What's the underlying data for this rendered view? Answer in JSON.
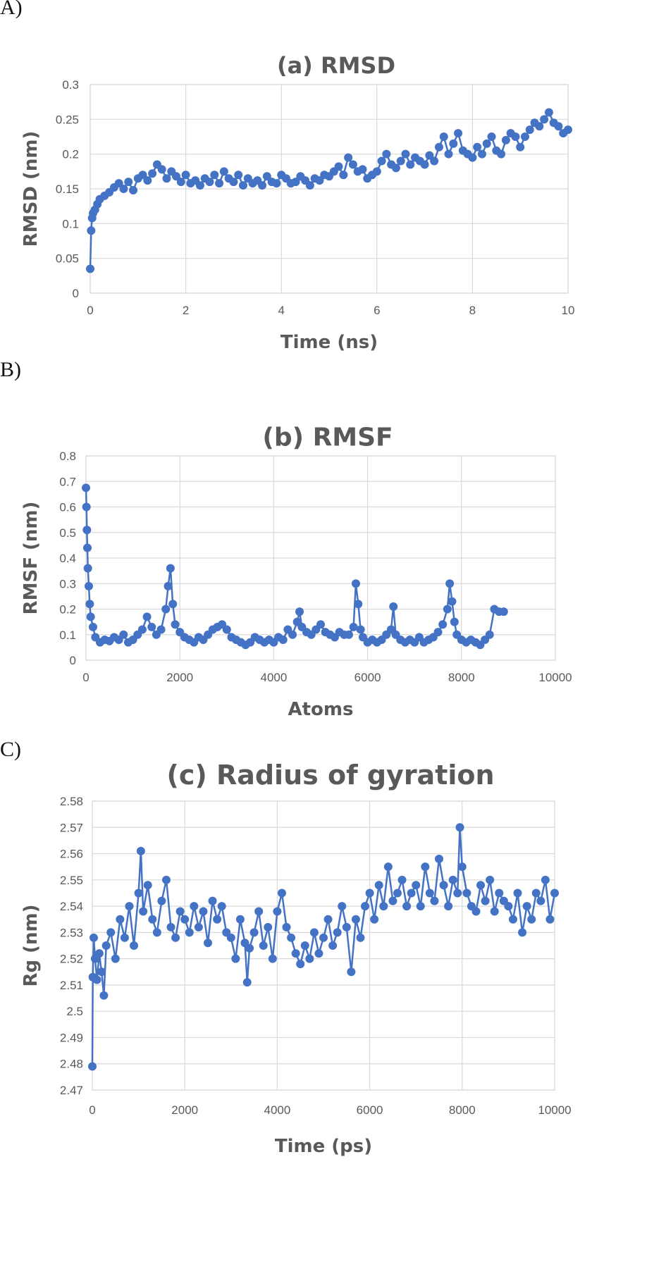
{
  "panels": [
    {
      "label": "A)"
    },
    {
      "label": "B)"
    },
    {
      "label": "C)"
    }
  ],
  "colors": {
    "series": "#4472c4",
    "grid": "#d9d9d9",
    "text": "#595959"
  },
  "chart_data": [
    {
      "type": "line",
      "title": "(a) RMSD",
      "xlabel": "Time (ns)",
      "ylabel": "RMSD (nm)",
      "xlim": [
        0,
        10
      ],
      "ylim": [
        0,
        0.3
      ],
      "xticks": [
        "0",
        "2",
        "4",
        "6",
        "8",
        "10"
      ],
      "yticks": [
        "0",
        "0.05",
        "0.1",
        "0.15",
        "0.2",
        "0.25",
        "0.3"
      ],
      "grid": true,
      "series": [
        {
          "x": [
            0,
            0.02,
            0.04,
            0.06,
            0.1,
            0.15,
            0.2,
            0.3,
            0.4,
            0.5,
            0.6,
            0.7,
            0.8,
            0.9,
            1.0,
            1.1,
            1.2,
            1.3,
            1.4,
            1.5,
            1.6,
            1.7,
            1.8,
            1.9,
            2.0,
            2.1,
            2.2,
            2.3,
            2.4,
            2.5,
            2.6,
            2.7,
            2.8,
            2.9,
            3.0,
            3.1,
            3.2,
            3.3,
            3.4,
            3.5,
            3.6,
            3.7,
            3.8,
            3.9,
            4.0,
            4.1,
            4.2,
            4.3,
            4.4,
            4.5,
            4.6,
            4.7,
            4.8,
            4.9,
            5.0,
            5.1,
            5.2,
            5.3,
            5.4,
            5.5,
            5.6,
            5.7,
            5.8,
            5.9,
            6.0,
            6.1,
            6.2,
            6.3,
            6.4,
            6.5,
            6.6,
            6.7,
            6.8,
            6.9,
            7.0,
            7.1,
            7.2,
            7.3,
            7.4,
            7.5,
            7.6,
            7.7,
            7.8,
            7.9,
            8.0,
            8.1,
            8.2,
            8.3,
            8.4,
            8.5,
            8.6,
            8.7,
            8.8,
            8.9,
            9.0,
            9.1,
            9.2,
            9.3,
            9.4,
            9.5,
            9.6,
            9.7,
            9.8,
            9.9,
            10.0
          ],
          "y": [
            0.035,
            0.09,
            0.108,
            0.115,
            0.12,
            0.128,
            0.135,
            0.14,
            0.145,
            0.152,
            0.158,
            0.15,
            0.16,
            0.148,
            0.165,
            0.17,
            0.162,
            0.172,
            0.185,
            0.178,
            0.165,
            0.175,
            0.168,
            0.16,
            0.17,
            0.158,
            0.162,
            0.155,
            0.165,
            0.16,
            0.17,
            0.158,
            0.175,
            0.165,
            0.16,
            0.17,
            0.155,
            0.165,
            0.158,
            0.162,
            0.155,
            0.168,
            0.16,
            0.158,
            0.17,
            0.165,
            0.158,
            0.16,
            0.168,
            0.162,
            0.155,
            0.165,
            0.162,
            0.17,
            0.168,
            0.175,
            0.182,
            0.17,
            0.195,
            0.185,
            0.175,
            0.178,
            0.165,
            0.17,
            0.175,
            0.19,
            0.2,
            0.185,
            0.18,
            0.19,
            0.2,
            0.185,
            0.195,
            0.19,
            0.185,
            0.198,
            0.19,
            0.21,
            0.225,
            0.2,
            0.215,
            0.23,
            0.205,
            0.2,
            0.195,
            0.21,
            0.2,
            0.215,
            0.225,
            0.205,
            0.2,
            0.22,
            0.23,
            0.225,
            0.21,
            0.225,
            0.235,
            0.245,
            0.24,
            0.25,
            0.26,
            0.245,
            0.24,
            0.23,
            0.235
          ]
        }
      ]
    },
    {
      "type": "line",
      "title": "(b) RMSF",
      "xlabel": "Atoms",
      "ylabel": "RMSF (nm)",
      "xlim": [
        0,
        10000
      ],
      "ylim": [
        0,
        0.8
      ],
      "xticks": [
        "0",
        "2000",
        "4000",
        "6000",
        "8000",
        "10000"
      ],
      "yticks": [
        "0",
        "0.1",
        "0.2",
        "0.3",
        "0.4",
        "0.5",
        "0.6",
        "0.7",
        "0.8"
      ],
      "grid": true,
      "series": [
        {
          "x": [
            0,
            10,
            20,
            30,
            40,
            60,
            80,
            100,
            150,
            200,
            300,
            400,
            500,
            600,
            700,
            800,
            900,
            1000,
            1100,
            1200,
            1300,
            1400,
            1500,
            1600,
            1700,
            1750,
            1800,
            1850,
            1900,
            2000,
            2100,
            2200,
            2300,
            2400,
            2500,
            2600,
            2700,
            2800,
            2900,
            3000,
            3100,
            3200,
            3300,
            3400,
            3500,
            3600,
            3700,
            3800,
            3900,
            4000,
            4100,
            4200,
            4300,
            4400,
            4500,
            4550,
            4600,
            4700,
            4800,
            4900,
            5000,
            5100,
            5200,
            5300,
            5400,
            5500,
            5600,
            5700,
            5750,
            5800,
            5850,
            5900,
            6000,
            6100,
            6200,
            6300,
            6400,
            6500,
            6550,
            6600,
            6700,
            6800,
            6900,
            7000,
            7100,
            7200,
            7300,
            7400,
            7500,
            7600,
            7700,
            7750,
            7800,
            7850,
            7900,
            8000,
            8100,
            8200,
            8300,
            8400,
            8500,
            8600,
            8700,
            8800,
            8900
          ],
          "y": [
            0.675,
            0.6,
            0.51,
            0.44,
            0.36,
            0.29,
            0.22,
            0.17,
            0.13,
            0.09,
            0.07,
            0.08,
            0.075,
            0.09,
            0.08,
            0.1,
            0.07,
            0.08,
            0.1,
            0.12,
            0.17,
            0.13,
            0.1,
            0.12,
            0.2,
            0.29,
            0.36,
            0.22,
            0.14,
            0.11,
            0.09,
            0.08,
            0.07,
            0.09,
            0.08,
            0.1,
            0.12,
            0.13,
            0.14,
            0.12,
            0.09,
            0.08,
            0.07,
            0.06,
            0.07,
            0.09,
            0.08,
            0.07,
            0.08,
            0.07,
            0.09,
            0.08,
            0.12,
            0.1,
            0.15,
            0.19,
            0.13,
            0.11,
            0.1,
            0.12,
            0.14,
            0.11,
            0.1,
            0.09,
            0.11,
            0.1,
            0.1,
            0.13,
            0.3,
            0.22,
            0.12,
            0.09,
            0.07,
            0.08,
            0.07,
            0.08,
            0.1,
            0.12,
            0.21,
            0.1,
            0.08,
            0.07,
            0.08,
            0.07,
            0.09,
            0.07,
            0.08,
            0.09,
            0.11,
            0.14,
            0.2,
            0.3,
            0.23,
            0.15,
            0.1,
            0.08,
            0.07,
            0.08,
            0.07,
            0.06,
            0.08,
            0.1,
            0.2,
            0.19,
            0.19
          ]
        }
      ]
    },
    {
      "type": "line",
      "title": "(c) Radius of gyration",
      "xlabel": "Time (ps)",
      "ylabel": "Rg (nm)",
      "xlim": [
        0,
        10000
      ],
      "ylim": [
        2.47,
        2.58
      ],
      "xticks": [
        "0",
        "2000",
        "4000",
        "6000",
        "8000",
        "10000"
      ],
      "yticks": [
        "2.47",
        "2.48",
        "2.49",
        "2.5",
        "2.51",
        "2.52",
        "2.53",
        "2.54",
        "2.55",
        "2.56",
        "2.57",
        "2.58"
      ],
      "grid": true,
      "series": [
        {
          "x": [
            0,
            10,
            30,
            60,
            100,
            150,
            200,
            250,
            300,
            400,
            500,
            600,
            700,
            800,
            900,
            1000,
            1050,
            1100,
            1200,
            1300,
            1400,
            1500,
            1600,
            1700,
            1800,
            1900,
            2000,
            2100,
            2200,
            2300,
            2400,
            2500,
            2600,
            2700,
            2800,
            2900,
            3000,
            3100,
            3200,
            3300,
            3350,
            3400,
            3500,
            3600,
            3700,
            3800,
            3900,
            4000,
            4100,
            4200,
            4300,
            4400,
            4500,
            4600,
            4700,
            4800,
            4900,
            5000,
            5100,
            5200,
            5300,
            5400,
            5500,
            5600,
            5700,
            5800,
            5900,
            6000,
            6100,
            6200,
            6300,
            6400,
            6500,
            6600,
            6700,
            6800,
            6900,
            7000,
            7100,
            7200,
            7300,
            7400,
            7500,
            7600,
            7700,
            7800,
            7900,
            7950,
            8000,
            8100,
            8200,
            8300,
            8400,
            8500,
            8600,
            8700,
            8800,
            8900,
            9000,
            9100,
            9200,
            9300,
            9400,
            9500,
            9600,
            9700,
            9800,
            9900,
            10000
          ],
          "y": [
            2.479,
            2.513,
            2.528,
            2.52,
            2.512,
            2.522,
            2.515,
            2.506,
            2.525,
            2.53,
            2.52,
            2.535,
            2.528,
            2.54,
            2.525,
            2.545,
            2.561,
            2.538,
            2.548,
            2.535,
            2.53,
            2.542,
            2.55,
            2.532,
            2.528,
            2.538,
            2.535,
            2.53,
            2.54,
            2.532,
            2.538,
            2.526,
            2.542,
            2.535,
            2.54,
            2.53,
            2.528,
            2.52,
            2.535,
            2.526,
            2.511,
            2.524,
            2.53,
            2.538,
            2.525,
            2.532,
            2.52,
            2.538,
            2.545,
            2.532,
            2.528,
            2.522,
            2.518,
            2.525,
            2.52,
            2.53,
            2.522,
            2.528,
            2.535,
            2.525,
            2.53,
            2.54,
            2.532,
            2.515,
            2.535,
            2.528,
            2.54,
            2.545,
            2.535,
            2.548,
            2.54,
            2.555,
            2.542,
            2.545,
            2.55,
            2.54,
            2.545,
            2.548,
            2.54,
            2.555,
            2.545,
            2.542,
            2.558,
            2.548,
            2.54,
            2.55,
            2.545,
            2.57,
            2.555,
            2.545,
            2.54,
            2.538,
            2.548,
            2.542,
            2.55,
            2.538,
            2.545,
            2.542,
            2.54,
            2.535,
            2.545,
            2.53,
            2.54,
            2.535,
            2.545,
            2.542,
            2.55,
            2.535,
            2.545
          ]
        }
      ]
    }
  ]
}
